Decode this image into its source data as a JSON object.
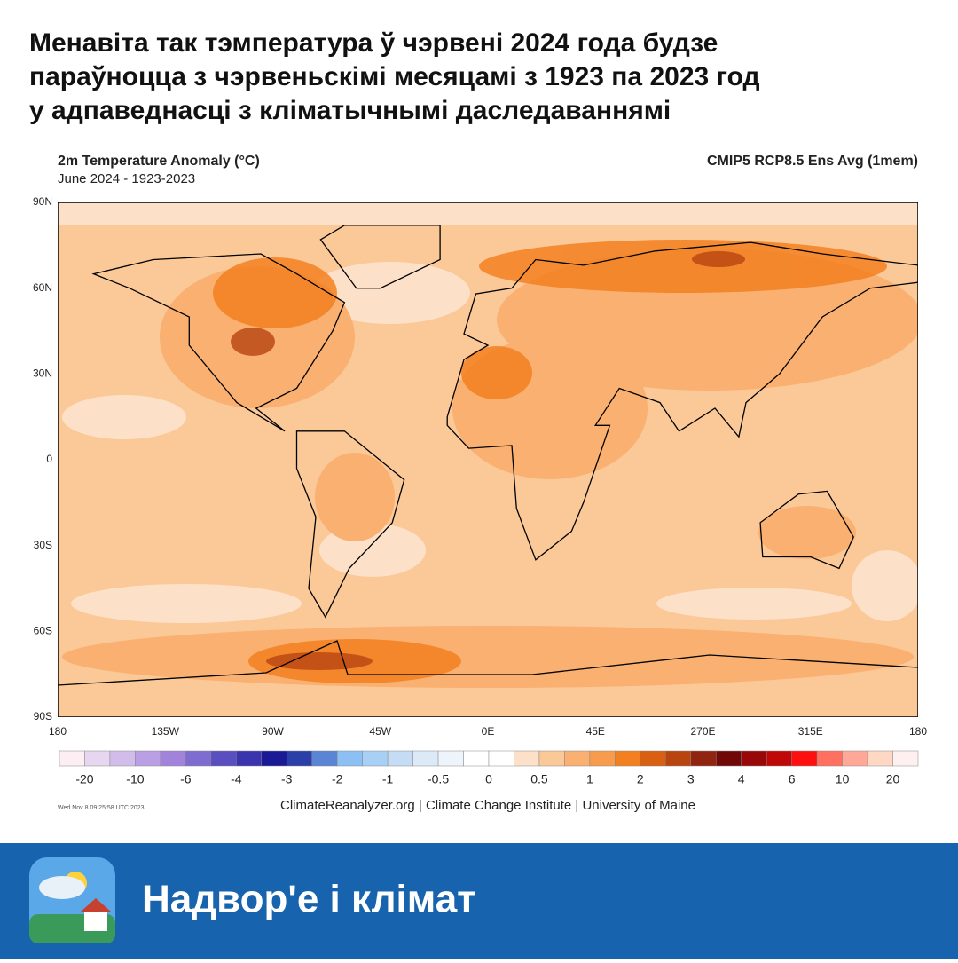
{
  "header": {
    "title_lines": [
      "Менавіта так тэмпература ў чэрвені 2024 года будзе",
      "параўноцца з чэрвеньскімі месяцамі з 1923 па 2023 год",
      "у адпаведнасці з кліматычнымі даследаваннямі"
    ]
  },
  "map": {
    "title": "2m Temperature Anomaly (°C)",
    "subtitle": "June 2024 - 1923-2023",
    "model": "CMIP5 RCP8.5 Ens Avg (1mem)",
    "lat_labels": [
      "90N",
      "60N",
      "30N",
      "0",
      "30S",
      "60S",
      "90S"
    ],
    "lon_labels": [
      "180",
      "135W",
      "90W",
      "45W",
      "0E",
      "45E",
      "270E",
      "315E",
      "180"
    ],
    "colorbar": {
      "labels": [
        "-20",
        "-10",
        "-6",
        "-4",
        "-3",
        "-2",
        "-1",
        "-0.5",
        "0",
        "0.5",
        "1",
        "2",
        "3",
        "4",
        "6",
        "10",
        "20"
      ],
      "colors": [
        "#fdeef4",
        "#e6d6f0",
        "#d2bdea",
        "#bb9fe4",
        "#a283dc",
        "#7f6cd0",
        "#5a4fc0",
        "#3a34ae",
        "#1a1a96",
        "#2c3ea8",
        "#5a84d4",
        "#8cc0f4",
        "#a8d0f4",
        "#c4dcf4",
        "#dceaf8",
        "#eef4fc",
        "#ffffff",
        "#ffffff",
        "#fde0c8",
        "#fbc898",
        "#f9b070",
        "#f69c4c",
        "#f38020",
        "#d86010",
        "#b84410",
        "#902410",
        "#700808",
        "#980808",
        "#c00808",
        "#ff1010",
        "#ff7060",
        "#ffa898",
        "#ffd8c4",
        "#fff0f0"
      ]
    },
    "timestamp": "Wed Nov  8 09:25:58 UTC 2023",
    "credit": "ClimateReanalyzer.org | Climate Change Institute | University of Maine"
  },
  "footer": {
    "brand": "Надвор'е і клімат"
  }
}
